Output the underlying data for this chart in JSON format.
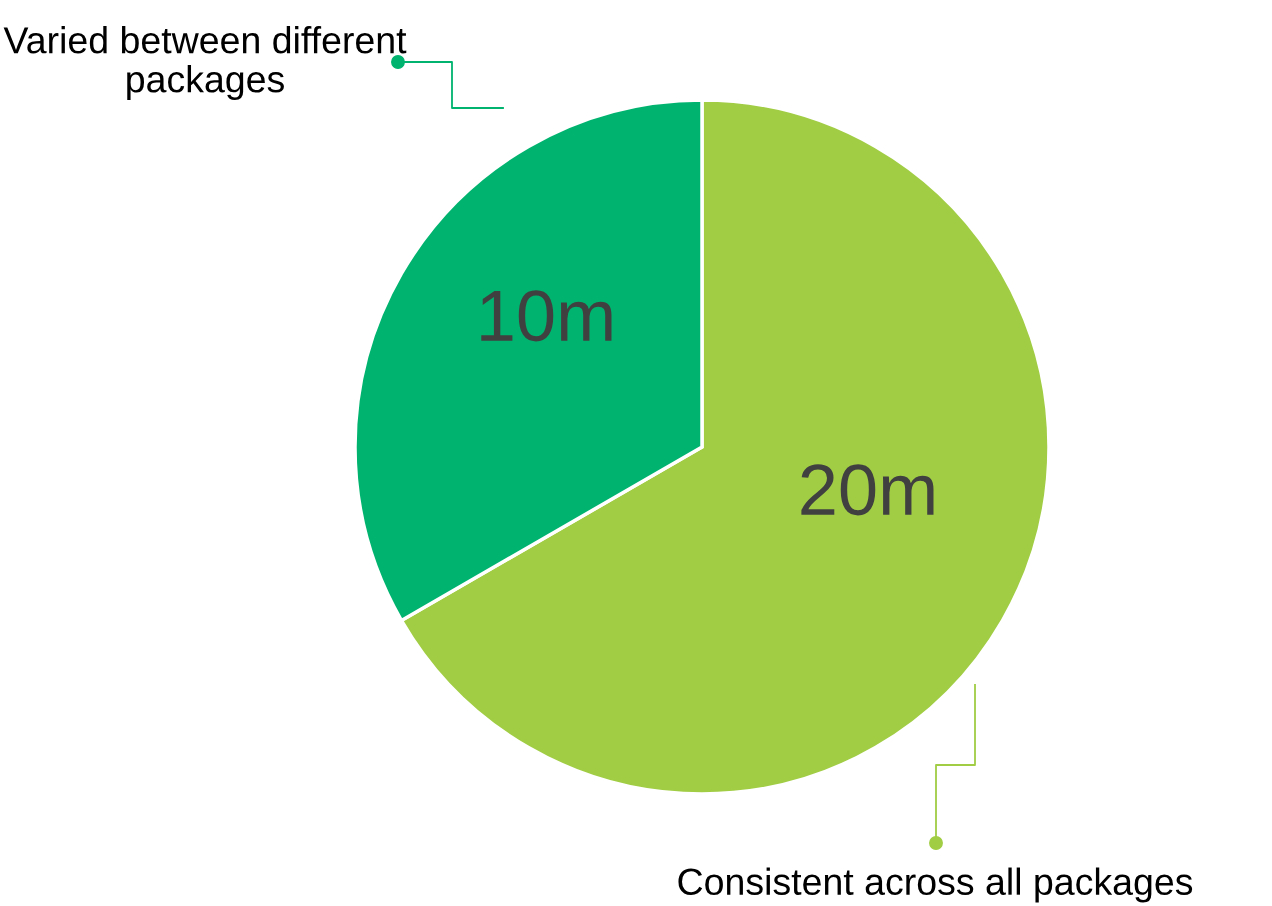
{
  "chart_data": {
    "type": "pie",
    "categories": [
      "Consistent across all packages",
      "Varied between different packages"
    ],
    "values": [
      20,
      10
    ],
    "value_labels": [
      "20m",
      "10m"
    ],
    "colors": [
      "#a1cd45",
      "#00b46f"
    ]
  }
}
